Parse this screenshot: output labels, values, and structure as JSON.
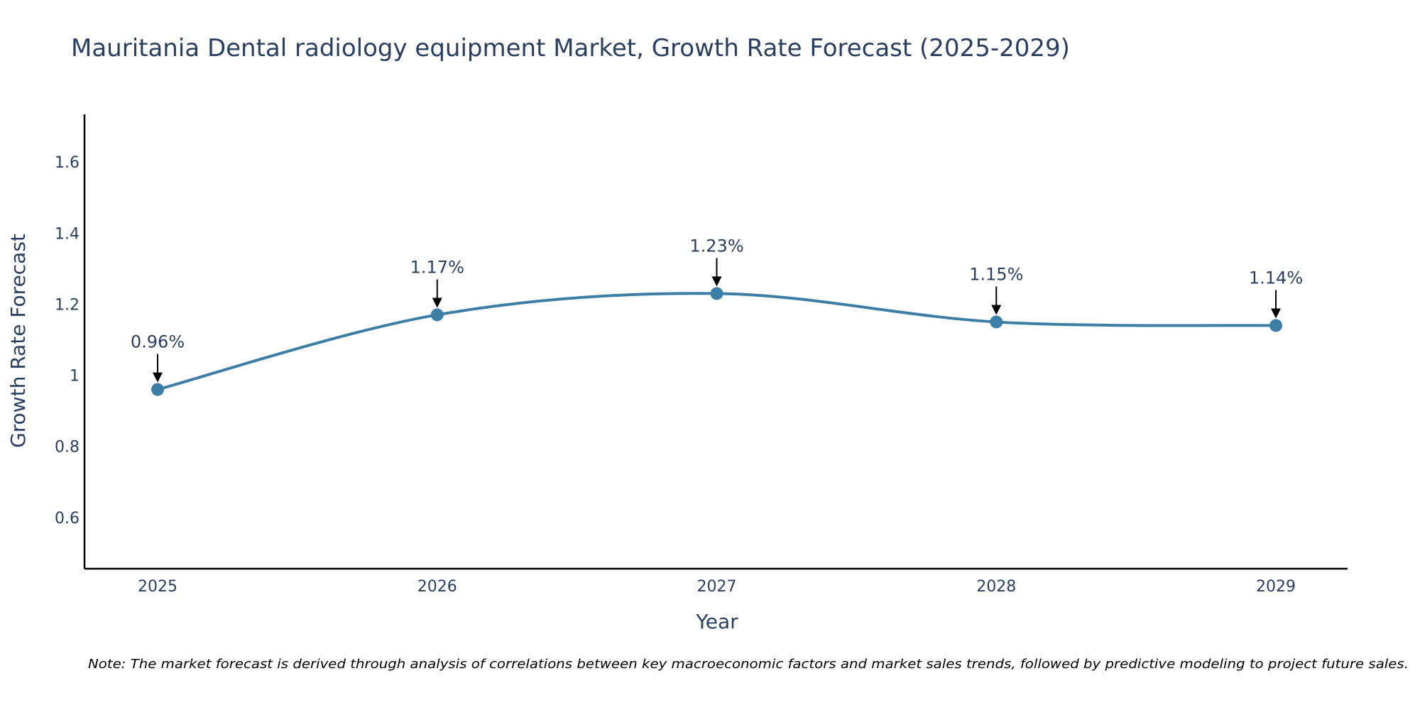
{
  "chart_data": {
    "type": "line",
    "title": "Mauritania Dental radiology equipment Market, Growth Rate Forecast (2025-2029)",
    "xlabel": "Year",
    "ylabel": "Growth Rate Forecast",
    "categories": [
      "2025",
      "2026",
      "2027",
      "2028",
      "2029"
    ],
    "series": [
      {
        "name": "Growth Rate Forecast",
        "values": [
          0.96,
          1.17,
          1.23,
          1.15,
          1.14
        ],
        "labels": [
          "0.96%",
          "1.17%",
          "1.23%",
          "1.15%",
          "1.14%"
        ]
      }
    ],
    "yticks": [
      0.6,
      0.8,
      1,
      1.2,
      1.4,
      1.6
    ],
    "ytick_labels": [
      "0.6",
      "0.8",
      "1",
      "1.2",
      "1.4",
      "1.6"
    ],
    "ylim": [
      0.456,
      1.734
    ],
    "grid": false,
    "line_shape": "spline",
    "note": "Note: The market forecast is derived through analysis of correlations between key macroeconomic factors and market sales trends, followed by predictive modeling to project future sales."
  },
  "colors": {
    "line": "#3d7ea6",
    "marker": "#3d7ea6",
    "axis": "#000000",
    "text": "#2a3f5f",
    "arrow": "#000000"
  }
}
